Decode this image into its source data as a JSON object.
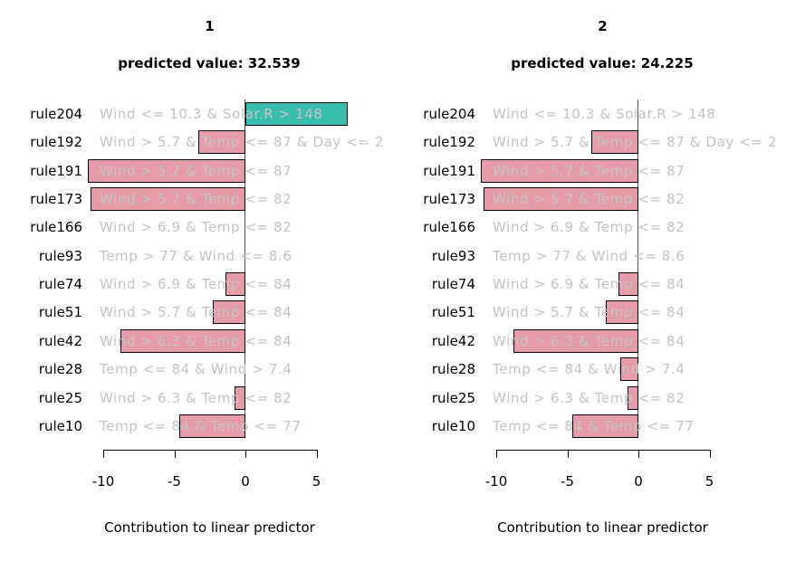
{
  "colors": {
    "positive_bar": "#3ABEAD",
    "negative_bar": "#E69CA9",
    "bar_border": "#000000",
    "rule_text": "#C3C3C3",
    "axis_text": "#000000",
    "zero_line": "#555555",
    "background": "#ffffff"
  },
  "chart_data": [
    {
      "type": "bar",
      "orientation": "horizontal",
      "title": "1",
      "subtitle": "predicted value: 32.539",
      "xlabel": "Contribution to linear predictor",
      "xticks": [
        -10,
        -5,
        0,
        5
      ],
      "xlim": [
        -11.5,
        6.5
      ],
      "grid": false,
      "zero_reference_line": true,
      "categories": [
        "rule204",
        "rule192",
        "rule191",
        "rule173",
        "rule166",
        "rule93",
        "rule74",
        "rule51",
        "rule42",
        "rule28",
        "rule25",
        "rule10"
      ],
      "rule_descriptions": [
        "Wind <= 10.3 & Solar.R > 148",
        "Wind > 5.7 & Temp <= 87 & Day <= 2",
        "Wind > 5.7 & Temp <= 87",
        "Wind > 5.7 & Temp <= 82",
        "Wind > 6.9 & Temp <= 82",
        "Temp > 77 & Wind <= 8.6",
        "Wind > 6.9 & Temp <= 84",
        "Wind > 5.7 & Temp <= 84",
        "Wind > 6.3 & Temp <= 84",
        "Temp <= 84 & Wind > 7.4",
        "Wind > 6.3 & Temp <= 82",
        "Temp <= 84 & Temp <= 77"
      ],
      "values": [
        7.2,
        -3.3,
        -11.1,
        -10.9,
        0,
        0,
        -1.4,
        -2.3,
        -8.8,
        0,
        -0.75,
        -4.65
      ]
    },
    {
      "type": "bar",
      "orientation": "horizontal",
      "title": "2",
      "subtitle": "predicted value: 24.225",
      "xlabel": "Contribution to linear predictor",
      "xticks": [
        -10,
        -5,
        0,
        5
      ],
      "xlim": [
        -11.5,
        6.5
      ],
      "grid": false,
      "zero_reference_line": true,
      "categories": [
        "rule204",
        "rule192",
        "rule191",
        "rule173",
        "rule166",
        "rule93",
        "rule74",
        "rule51",
        "rule42",
        "rule28",
        "rule25",
        "rule10"
      ],
      "rule_descriptions": [
        "Wind <= 10.3 & Solar.R > 148",
        "Wind > 5.7 & Temp <= 87 & Day <= 2",
        "Wind > 5.7 & Temp <= 87",
        "Wind > 5.7 & Temp <= 82",
        "Wind > 6.9 & Temp <= 82",
        "Temp > 77 & Wind <= 8.6",
        "Wind > 6.9 & Temp <= 84",
        "Wind > 5.7 & Temp <= 84",
        "Wind > 6.3 & Temp <= 84",
        "Temp <= 84 & Wind > 7.4",
        "Wind > 6.3 & Temp <= 82",
        "Temp <= 84 & Temp <= 77"
      ],
      "values": [
        0,
        -3.3,
        -11.1,
        -10.9,
        0,
        0,
        -1.4,
        -2.3,
        -8.8,
        -1.25,
        -0.75,
        -4.65
      ]
    }
  ]
}
